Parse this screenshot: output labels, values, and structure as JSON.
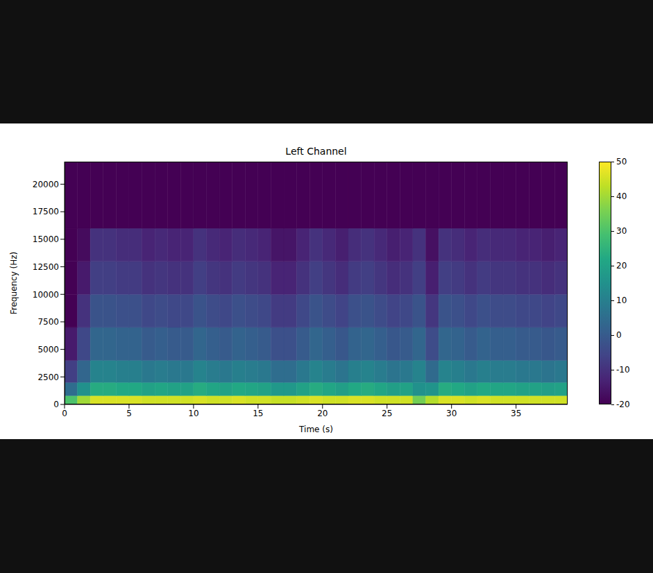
{
  "chart_data": {
    "type": "heatmap",
    "title": "Left Channel",
    "x_label": "Time (s)",
    "y_label": "Frequency (Hz)",
    "xlim": [
      0,
      39
    ],
    "ylim": [
      0,
      22050
    ],
    "xticks": [
      0,
      5,
      10,
      15,
      20,
      25,
      30,
      35
    ],
    "yticks": [
      0,
      2500,
      5000,
      7500,
      10000,
      12500,
      15000,
      17500,
      20000
    ],
    "x_bins": [
      0,
      1,
      2,
      3,
      4,
      5,
      6,
      7,
      8,
      9,
      10,
      11,
      12,
      13,
      14,
      15,
      16,
      17,
      18,
      19,
      20,
      21,
      22,
      23,
      24,
      25,
      26,
      27,
      28,
      29,
      30,
      31,
      32,
      33,
      34,
      35,
      36,
      37,
      38,
      39
    ],
    "y_bins": [
      0,
      800,
      2000,
      4000,
      7000,
      10000,
      13000,
      16000,
      22050
    ],
    "cells": [
      [
        30,
        40,
        46,
        46,
        46,
        46,
        45,
        45,
        45,
        45,
        46,
        45,
        45,
        46,
        45,
        45,
        44,
        44,
        45,
        46,
        45,
        45,
        46,
        46,
        45,
        45,
        45,
        35,
        42,
        46,
        46,
        45,
        46,
        45,
        45,
        45,
        45,
        45,
        45
      ],
      [
        5,
        15,
        23,
        23,
        22,
        22,
        20,
        21,
        20,
        20,
        23,
        21,
        20,
        22,
        21,
        20,
        17,
        17,
        20,
        23,
        21,
        19,
        22,
        23,
        21,
        19,
        20,
        15,
        16,
        23,
        22,
        20,
        22,
        21,
        21,
        20,
        20,
        19,
        20
      ],
      [
        -7,
        3,
        11,
        11,
        10,
        10,
        8,
        9,
        8,
        8,
        11,
        9,
        8,
        10,
        9,
        8,
        5,
        5,
        8,
        11,
        9,
        7,
        10,
        11,
        9,
        7,
        8,
        11,
        4,
        11,
        10,
        8,
        10,
        9,
        9,
        8,
        8,
        7,
        8
      ],
      [
        -15,
        -5,
        3,
        3,
        2,
        2,
        0,
        1,
        0,
        0,
        3,
        1,
        0,
        2,
        1,
        0,
        -3,
        -3,
        0,
        3,
        1,
        -1,
        2,
        3,
        1,
        -1,
        0,
        3,
        -4,
        3,
        2,
        0,
        2,
        1,
        1,
        0,
        0,
        -1,
        0
      ],
      [
        -20,
        -10,
        -2,
        -2,
        -3,
        -3,
        -5,
        -4,
        -5,
        -5,
        -2,
        -4,
        -5,
        -3,
        -4,
        -5,
        -8,
        -8,
        -5,
        -2,
        -4,
        -6,
        -3,
        -2,
        -4,
        -6,
        -5,
        -2,
        -9,
        -2,
        -3,
        -5,
        -3,
        -4,
        -4,
        -5,
        -5,
        -6,
        -5
      ],
      [
        -20,
        -15,
        -7,
        -7,
        -8,
        -8,
        -10,
        -9,
        -10,
        -10,
        -7,
        -9,
        -10,
        -8,
        -9,
        -10,
        -13,
        -13,
        -10,
        -7,
        -9,
        -11,
        -8,
        -7,
        -9,
        -11,
        -10,
        -7,
        -14,
        -7,
        -8,
        -10,
        -8,
        -9,
        -9,
        -10,
        -10,
        -11,
        -10
      ],
      [
        -20,
        -18,
        -10,
        -10,
        -11,
        -11,
        -13,
        -12,
        -13,
        -13,
        -10,
        -12,
        -13,
        -11,
        -12,
        -13,
        -16,
        -16,
        -13,
        -10,
        -12,
        -14,
        -11,
        -10,
        -12,
        -14,
        -13,
        -10,
        -17,
        -10,
        -11,
        -13,
        -11,
        -12,
        -12,
        -13,
        -13,
        -14,
        -13
      ],
      [
        -20,
        -20,
        -20,
        -20,
        -20,
        -20,
        -20,
        -20,
        -20,
        -20,
        -20,
        -20,
        -20,
        -20,
        -20,
        -20,
        -20,
        -20,
        -20,
        -20,
        -20,
        -20,
        -20,
        -20,
        -20,
        -20,
        -20,
        -20,
        -20,
        -20,
        -20,
        -20,
        -20,
        -20,
        -20,
        -20,
        -20,
        -20,
        -20
      ]
    ],
    "colorbar_range": [
      -20,
      50
    ],
    "colorbar_ticks": [
      -20,
      -10,
      0,
      10,
      20,
      30,
      40,
      50
    ]
  }
}
